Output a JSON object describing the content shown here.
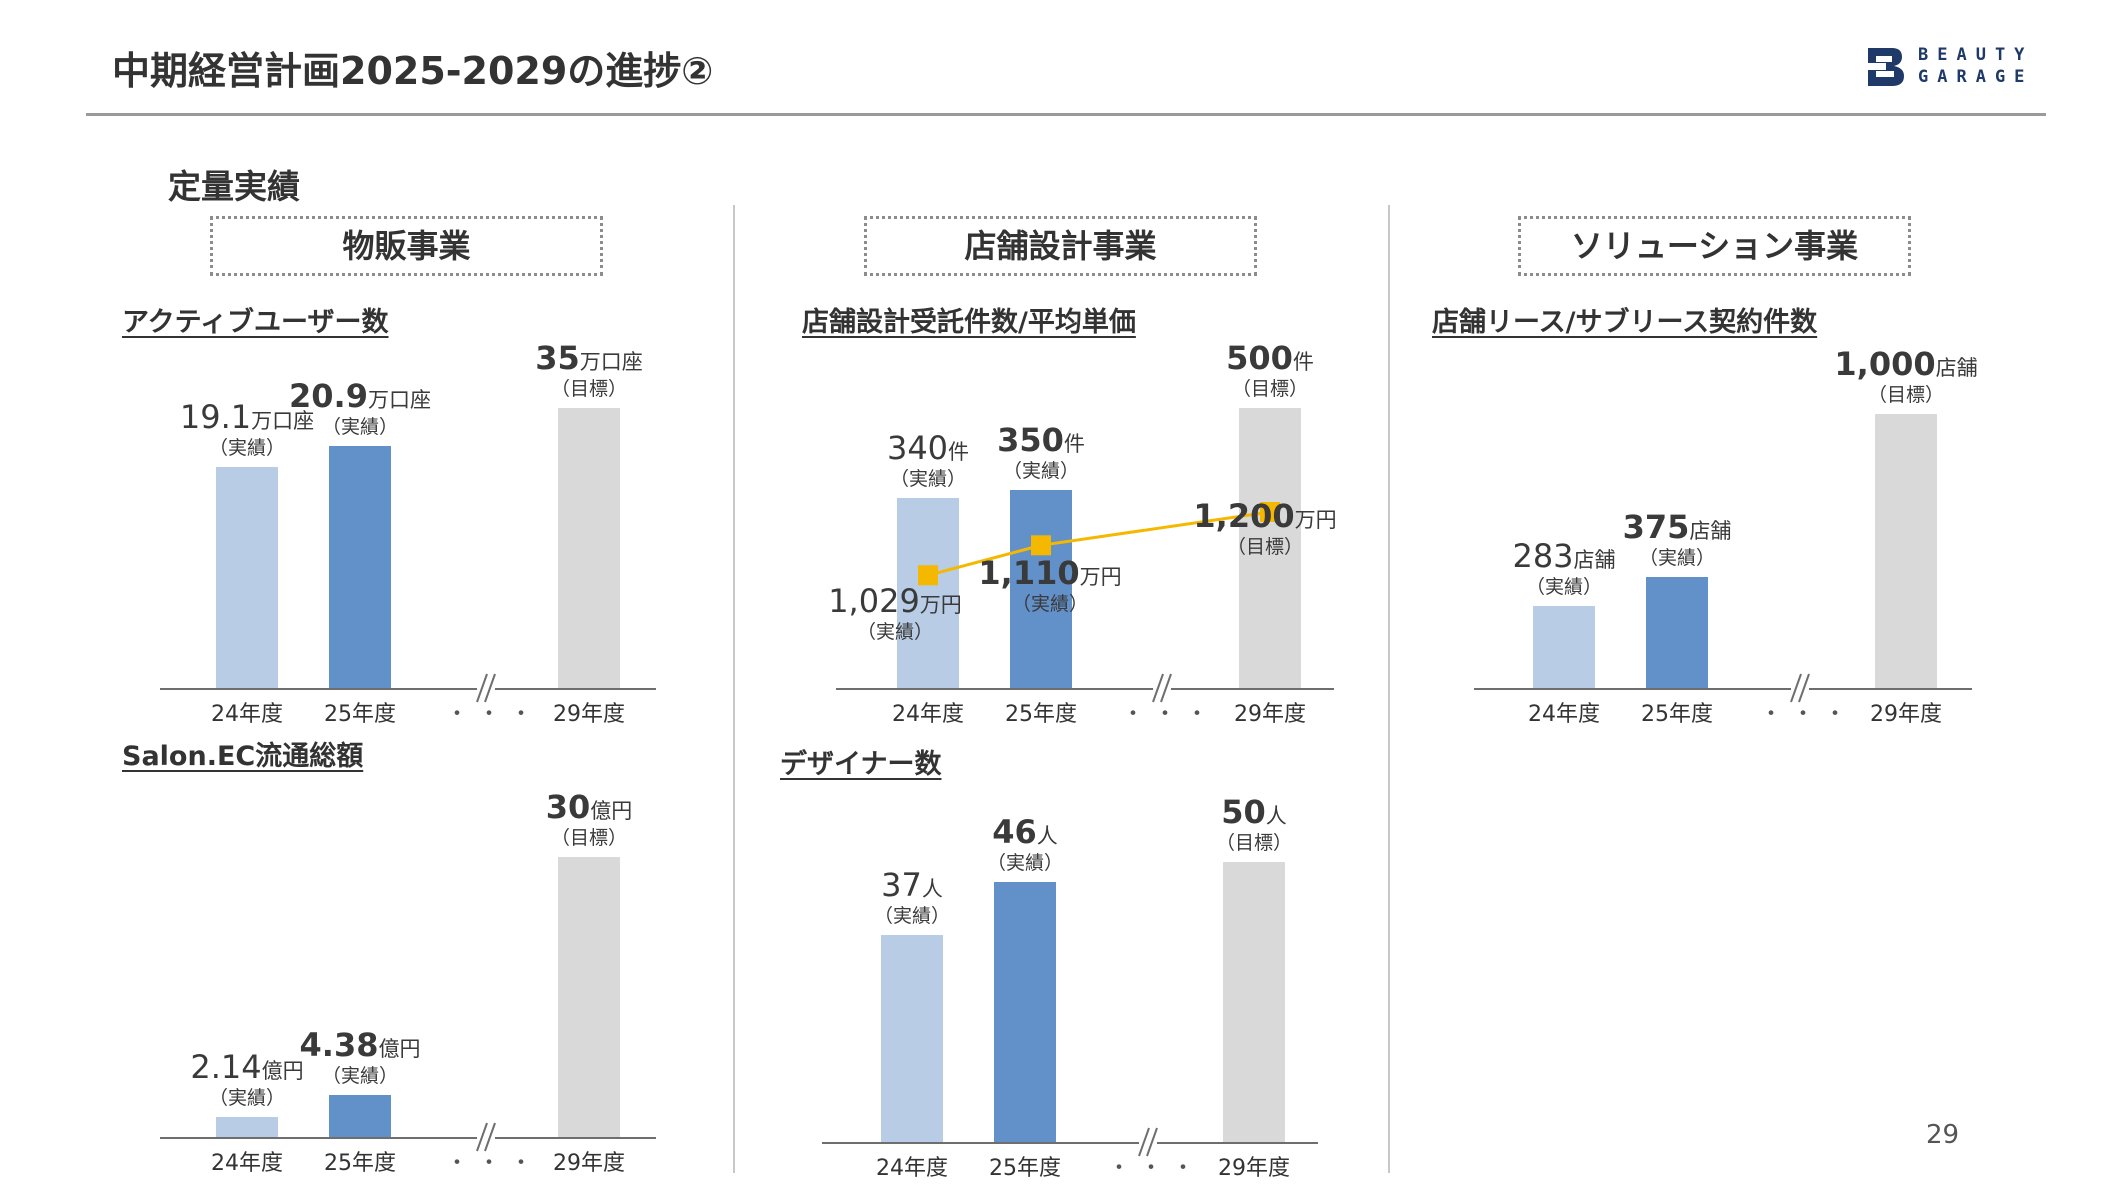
{
  "header": {
    "title": "中期経営計画2025-2029の進捗②",
    "logo_text": "BEAUTY\nGARAGE",
    "logo_icon": "beauty-garage-logo",
    "rule_color": "#9a9a9a"
  },
  "section_title": "定量実績",
  "page_number": "29",
  "axis_break_marker": "・・・",
  "colors": {
    "fy24": "#b8cce6",
    "fy25": "#6290c8",
    "fy29": "#d9d9d9",
    "line": "#f5b800"
  },
  "divisions": [
    {
      "name": "物販事業"
    },
    {
      "name": "店舗設計事業"
    },
    {
      "name": "ソリューション事業"
    }
  ],
  "charts": {
    "active_users": {
      "title": "アクティブユーザー数",
      "categories": [
        "24年度",
        "25年度",
        "29年度"
      ],
      "labels": [
        {
          "value": "19.1",
          "unit": "万口座",
          "note": "（実績）"
        },
        {
          "value": "20.9",
          "unit": "万口座",
          "note": "（実績）"
        },
        {
          "value": "35",
          "unit": "万口座",
          "note": "（目標）"
        }
      ]
    },
    "salon_ec": {
      "title": "Salon.EC流通総額",
      "categories": [
        "24年度",
        "25年度",
        "29年度"
      ],
      "labels": [
        {
          "value": "2.14",
          "unit": "億円",
          "note": "（実績）"
        },
        {
          "value": "4.38",
          "unit": "億円",
          "note": "（実績）"
        },
        {
          "value": "30",
          "unit": "億円",
          "note": "（目標）"
        }
      ]
    },
    "store_design": {
      "title": "店舗設計受託件数/平均単価",
      "categories": [
        "24年度",
        "25年度",
        "29年度"
      ],
      "labels": [
        {
          "value": "340",
          "unit": "件",
          "note": "（実績）"
        },
        {
          "value": "350",
          "unit": "件",
          "note": "（実績）"
        },
        {
          "value": "500",
          "unit": "件",
          "note": "（目標）"
        }
      ],
      "price_labels": [
        {
          "value": "1,029",
          "unit": "万円",
          "note": "（実績）"
        },
        {
          "value": "1,110",
          "unit": "万円",
          "note": "（実績）"
        },
        {
          "value": "1,200",
          "unit": "万円",
          "note": "（目標）"
        }
      ]
    },
    "designers": {
      "title": "デザイナー数",
      "categories": [
        "24年度",
        "25年度",
        "29年度"
      ],
      "labels": [
        {
          "value": "37",
          "unit": "人",
          "note": "（実績）"
        },
        {
          "value": "46",
          "unit": "人",
          "note": "（実績）"
        },
        {
          "value": "50",
          "unit": "人",
          "note": "（目標）"
        }
      ]
    },
    "leases": {
      "title": "店舗リース/サブリース契約件数",
      "categories": [
        "24年度",
        "25年度",
        "29年度"
      ],
      "labels": [
        {
          "value": "283",
          "unit": "店舗",
          "note": "（実績）"
        },
        {
          "value": "375",
          "unit": "店舗",
          "note": "（実績）"
        },
        {
          "value": "1,000",
          "unit": "店舗",
          "note": "（目標）"
        }
      ]
    }
  },
  "chart_data": [
    {
      "type": "bar",
      "title": "アクティブユーザー数",
      "categories": [
        "24年度",
        "25年度",
        "29年度"
      ],
      "values": [
        19.1,
        20.9,
        35
      ],
      "unit": "万口座",
      "value_notes": [
        "実績",
        "実績",
        "目標"
      ]
    },
    {
      "type": "bar",
      "title": "Salon.EC流通総額",
      "categories": [
        "24年度",
        "25年度",
        "29年度"
      ],
      "values": [
        2.14,
        4.38,
        30
      ],
      "unit": "億円",
      "value_notes": [
        "実績",
        "実績",
        "目標"
      ]
    },
    {
      "type": "bar",
      "title": "店舗設計受託件数/平均単価",
      "categories": [
        "24年度",
        "25年度",
        "29年度"
      ],
      "series": [
        {
          "type": "bar",
          "values": [
            340,
            350,
            500
          ],
          "unit": "件"
        },
        {
          "type": "line",
          "values": [
            1029,
            1110,
            1200
          ],
          "unit": "万円"
        }
      ],
      "value_notes": [
        "実績",
        "実績",
        "目標"
      ]
    },
    {
      "type": "bar",
      "title": "デザイナー数",
      "categories": [
        "24年度",
        "25年度",
        "29年度"
      ],
      "values": [
        37,
        46,
        50
      ],
      "unit": "人",
      "value_notes": [
        "実績",
        "実績",
        "目標"
      ]
    },
    {
      "type": "bar",
      "title": "店舗リース/サブリース契約件数",
      "categories": [
        "24年度",
        "25年度",
        "29年度"
      ],
      "values": [
        283,
        375,
        1000
      ],
      "unit": "店舗",
      "value_notes": [
        "実績",
        "実績",
        "目標"
      ]
    }
  ]
}
